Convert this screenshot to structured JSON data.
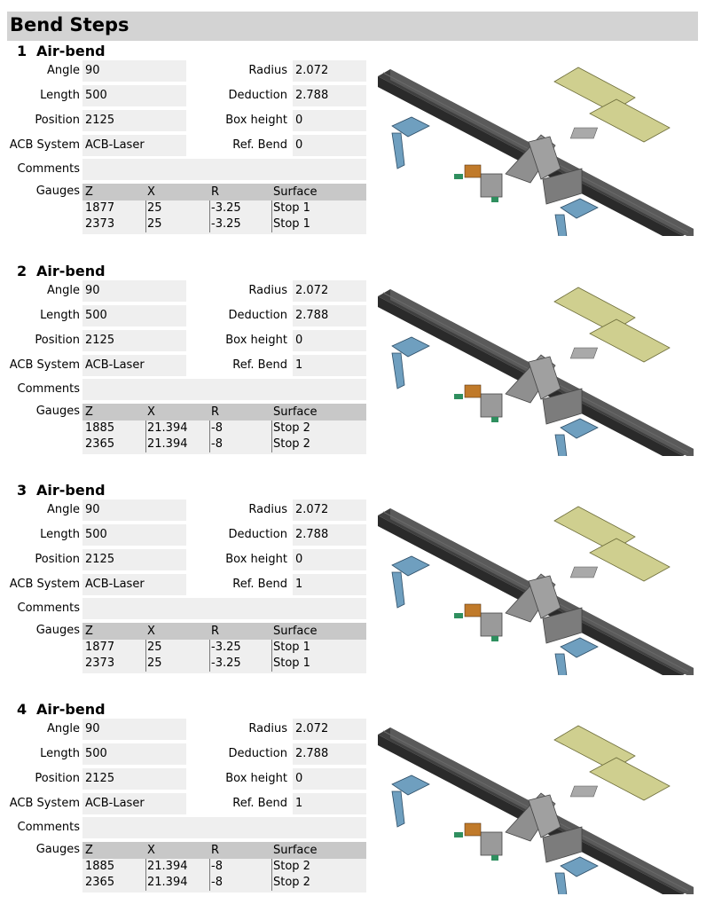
{
  "header": {
    "title": "Bend Steps"
  },
  "labels": {
    "angle": "Angle",
    "length": "Length",
    "position": "Position",
    "acb": "ACB System",
    "radius": "Radius",
    "deduction": "Deduction",
    "box_height": "Box height",
    "ref_bend": "Ref. Bend",
    "comments": "Comments",
    "gauges": "Gauges"
  },
  "gauge_columns": [
    "Z",
    "X",
    "R",
    "Surface"
  ],
  "steps": [
    {
      "number": "1",
      "type": "Air-bend",
      "angle": "90",
      "length": "500",
      "position": "2125",
      "acb_system": "ACB-Laser",
      "radius": "2.072",
      "deduction": "2.788",
      "box_height": "0",
      "ref_bend": "0",
      "comments": "",
      "gauges": [
        [
          "1877",
          "25",
          "-3.25",
          "Stop 1"
        ],
        [
          "2373",
          "25",
          "-3.25",
          "Stop 1"
        ]
      ]
    },
    {
      "number": "2",
      "type": "Air-bend",
      "angle": "90",
      "length": "500",
      "position": "2125",
      "acb_system": "ACB-Laser",
      "radius": "2.072",
      "deduction": "2.788",
      "box_height": "0",
      "ref_bend": "1",
      "comments": "",
      "gauges": [
        [
          "1885",
          "21.394",
          "-8",
          "Stop 2"
        ],
        [
          "2365",
          "21.394",
          "-8",
          "Stop 2"
        ]
      ]
    },
    {
      "number": "3",
      "type": "Air-bend",
      "angle": "90",
      "length": "500",
      "position": "2125",
      "acb_system": "ACB-Laser",
      "radius": "2.072",
      "deduction": "2.788",
      "box_height": "0",
      "ref_bend": "1",
      "comments": "",
      "gauges": [
        [
          "1877",
          "25",
          "-3.25",
          "Stop 1"
        ],
        [
          "2373",
          "25",
          "-3.25",
          "Stop 1"
        ]
      ]
    },
    {
      "number": "4",
      "type": "Air-bend",
      "angle": "90",
      "length": "500",
      "position": "2125",
      "acb_system": "ACB-Laser",
      "radius": "2.072",
      "deduction": "2.788",
      "box_height": "0",
      "ref_bend": "1",
      "comments": "",
      "gauges": [
        [
          "1885",
          "21.394",
          "-8",
          "Stop 2"
        ],
        [
          "2365",
          "21.394",
          "-8",
          "Stop 2"
        ]
      ]
    }
  ],
  "colors": {
    "header_bg": "#d3d3d3",
    "field_bg": "#efefef",
    "gauge_header_bg": "#c8c8c8",
    "rail": "#4a4a4a",
    "tool_gray": "#8c8c8c",
    "backgauge_blue": "#6f9fbf",
    "part_yellow": "#cfcf8f",
    "accent_orange": "#c07a2a",
    "accent_green": "#2f8f5f"
  }
}
